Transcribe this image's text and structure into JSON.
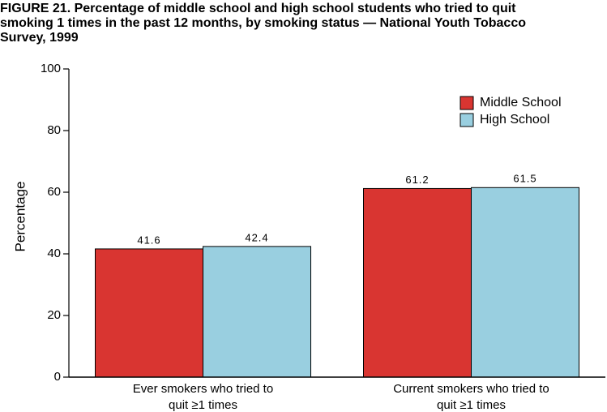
{
  "chart_data": {
    "type": "bar",
    "title": [
      "FIGURE 21. Percentage of middle school and high school students who tried to quit",
      "smoking   1 times in the past 12 months, by smoking status — National Youth Tobacco",
      "Survey, 1999"
    ],
    "ylabel": "Percentage",
    "categories": [
      [
        "Ever smokers who tried to",
        "quit ≥1 times"
      ],
      [
        "Current smokers who tried to",
        "quit ≥1 times"
      ]
    ],
    "series": [
      {
        "name": "Middle School",
        "color": "#d93531",
        "values": [
          41.6,
          61.2
        ]
      },
      {
        "name": "High School",
        "color": "#99cfe0",
        "values": [
          42.4,
          61.5
        ]
      }
    ],
    "ylim": [
      0,
      100
    ],
    "yticks": [
      0,
      20,
      40,
      60,
      80,
      100
    ],
    "grid": false,
    "legend": "top-right"
  }
}
